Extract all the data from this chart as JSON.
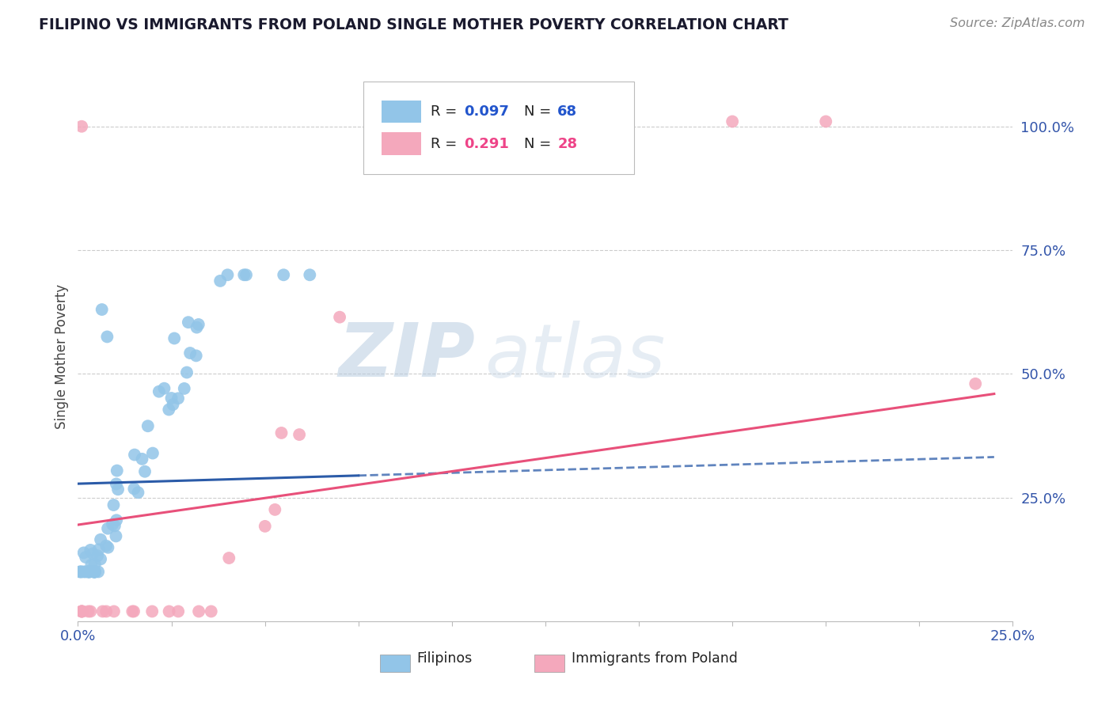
{
  "title": "FILIPINO VS IMMIGRANTS FROM POLAND SINGLE MOTHER POVERTY CORRELATION CHART",
  "source": "Source: ZipAtlas.com",
  "ylabel": "Single Mother Poverty",
  "r_filipino": 0.097,
  "n_filipino": 68,
  "r_poland": 0.291,
  "n_poland": 28,
  "filipino_color": "#92C5E8",
  "poland_color": "#F4A8BC",
  "filipino_line_color": "#2B5BA8",
  "poland_line_color": "#E8507A",
  "background_color": "#FFFFFF",
  "grid_color": "#CCCCCC",
  "watermark_color": "#D8E8F8",
  "title_color": "#1A1A2E",
  "source_color": "#888888",
  "tick_color": "#3355AA",
  "axis_label_color": "#444444",
  "legend_text_color": "#222222",
  "legend_value_color_blue": "#2255CC",
  "legend_value_color_pink": "#EE4488"
}
